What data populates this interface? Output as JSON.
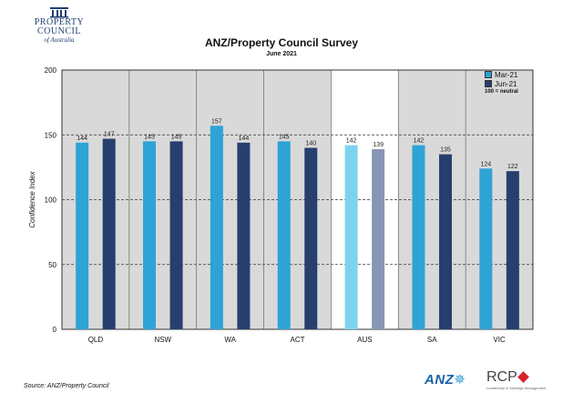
{
  "logo": {
    "line1": "PROPERTY",
    "line2": "COUNCIL",
    "line3": "of Australia"
  },
  "chart_data": {
    "type": "bar",
    "title": "ANZ/Property Council Survey",
    "subtitle": "June 2021",
    "ylabel": "Confidence Index",
    "xlabel": "",
    "ylim": [
      0,
      200
    ],
    "yticks": [
      0,
      50,
      100,
      150,
      200
    ],
    "categories": [
      "QLD",
      "NSW",
      "WA",
      "ACT",
      "AUS",
      "SA",
      "VIC"
    ],
    "highlight_category": "AUS",
    "series": [
      {
        "name": "Mar-21",
        "values": [
          144,
          145,
          157,
          145,
          142,
          142,
          124
        ],
        "color": "#2ea3d5",
        "highlight_color": "#7dd3ef"
      },
      {
        "name": "Jun-21",
        "values": [
          147,
          145,
          144,
          140,
          139,
          135,
          122
        ],
        "color": "#263f6e",
        "highlight_color": "#8896b4"
      }
    ],
    "legend_note": "100 = neutral",
    "legend_position": "top-right",
    "grid": true,
    "colors": {
      "panel": "#d9d9d9",
      "highlight_panel": "#ffffff"
    }
  },
  "source": "Source: ANZ/Property Council",
  "footer_logos": {
    "anz": "ANZ",
    "rcp": "RCP",
    "rcp_tagline": "Leadership in Strategic Management"
  }
}
